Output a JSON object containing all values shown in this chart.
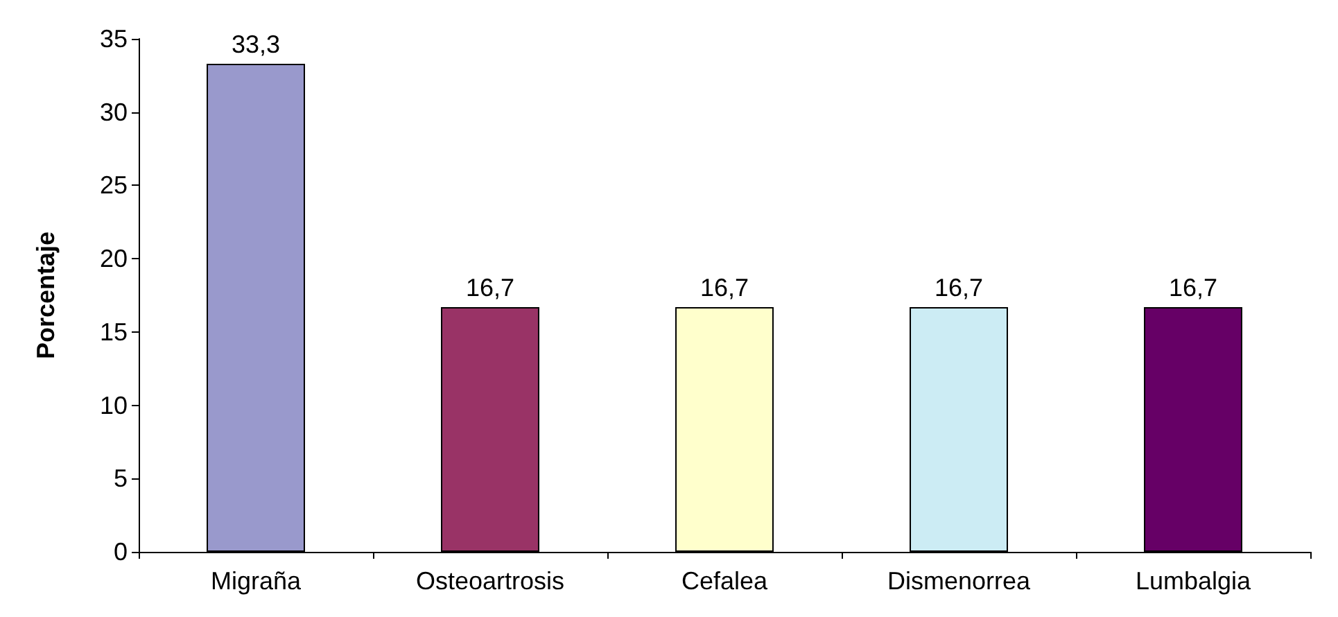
{
  "chart_data": {
    "type": "bar",
    "ylabel": "Porcentaje",
    "categories": [
      "Migraña",
      "Osteoartrosis",
      "Cefalea",
      "Dismenorrea",
      "Lumbalgia"
    ],
    "values": [
      33.3,
      16.7,
      16.7,
      16.7,
      16.7
    ],
    "value_labels": [
      "33,3",
      "16,7",
      "16,7",
      "16,7",
      "16,7"
    ],
    "colors": [
      "#9999cc",
      "#993366",
      "#ffffcc",
      "#ccecf4",
      "#660066"
    ],
    "ylim": [
      0,
      35
    ],
    "yticks": [
      0,
      5,
      10,
      15,
      20,
      25,
      30,
      35
    ],
    "grid": false
  }
}
